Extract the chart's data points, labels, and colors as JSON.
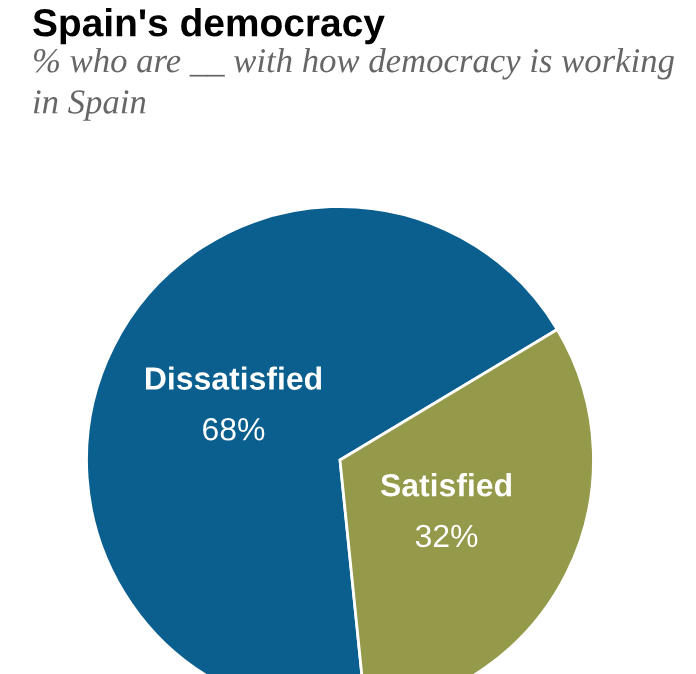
{
  "chart_data": {
    "type": "pie",
    "title": "Spain's democracy",
    "subtitle": "% who are __ with how democracy is working in Spain",
    "categories": [
      "Dissatisfied",
      "Satisfied"
    ],
    "values": [
      68,
      32
    ],
    "value_labels": [
      "68%",
      "32%"
    ],
    "colors": [
      "#0a5f8f",
      "#959a4a"
    ]
  }
}
